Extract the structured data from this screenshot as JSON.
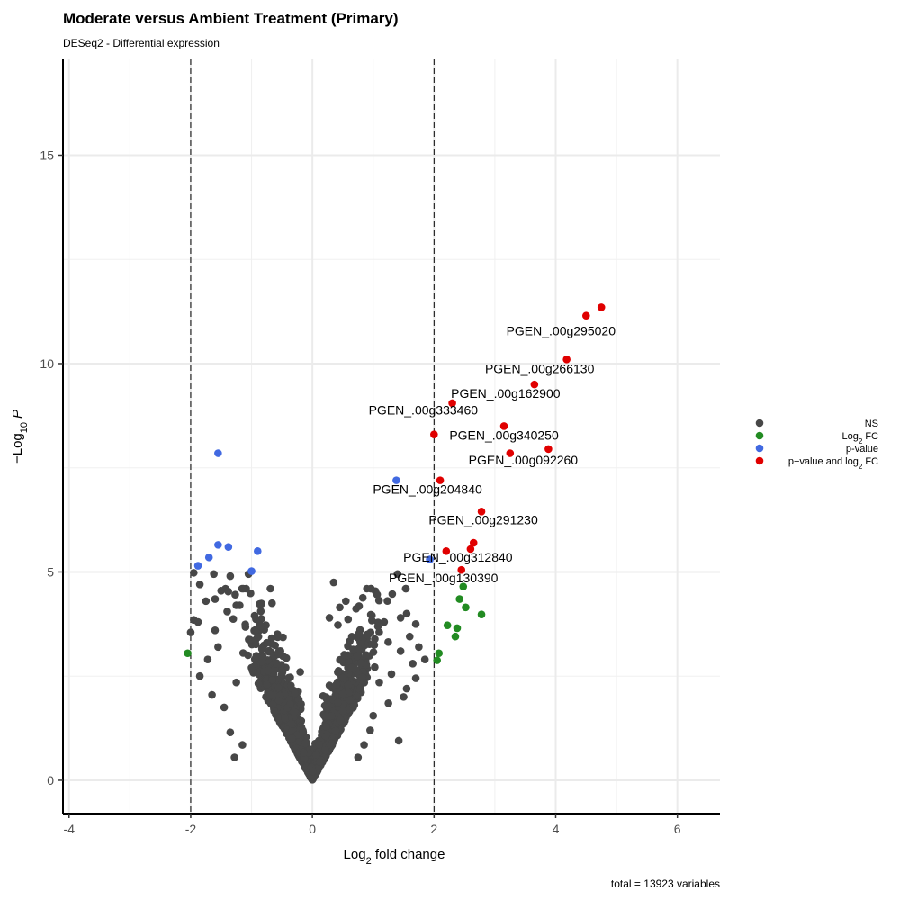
{
  "chart_data": {
    "type": "scatter",
    "title": "Moderate versus Ambient Treatment (Primary)",
    "subtitle": "DESeq2 - Differential expression",
    "xlabel_main": "Log",
    "xlabel_sub": "2",
    "xlabel_rest": " fold change",
    "ylabel_prefix": "−Log",
    "ylabel_sub": "10",
    "ylabel_var": "P",
    "xlim": [
      -4.1,
      6.7
    ],
    "ylim": [
      -0.8,
      17.3
    ],
    "x_ticks": [
      -4,
      -2,
      0,
      2,
      4,
      6
    ],
    "y_ticks": [
      0,
      5,
      10,
      15
    ],
    "cutoffs": {
      "log2fc": [
        -2,
        2
      ],
      "neg_log10_p": 5
    },
    "caption": "total = 13923 variables",
    "legend": {
      "position": "right",
      "entries": [
        {
          "key": "NS",
          "label": "NS",
          "color": "#474747"
        },
        {
          "key": "FC",
          "label": "Log",
          "label_sub": "2",
          "label_rest": " FC",
          "color": "#228B22"
        },
        {
          "key": "P",
          "label": "p-value",
          "color": "#4169E1"
        },
        {
          "key": "PFC",
          "label": "p−value and log",
          "label_sub": "2",
          "label_rest": " FC",
          "color": "#E00000"
        }
      ]
    },
    "series": [
      {
        "key": "PFC",
        "points": [
          [
            4.75,
            11.35
          ],
          [
            4.5,
            11.15
          ],
          [
            4.18,
            10.1
          ],
          [
            3.65,
            9.5
          ],
          [
            2.3,
            9.05
          ],
          [
            3.15,
            8.5
          ],
          [
            2.0,
            8.3
          ],
          [
            3.88,
            7.95
          ],
          [
            3.25,
            7.85
          ],
          [
            2.1,
            7.2
          ],
          [
            2.78,
            6.45
          ],
          [
            2.65,
            5.7
          ],
          [
            2.6,
            5.55
          ],
          [
            2.2,
            5.5
          ],
          [
            2.45,
            5.05
          ]
        ]
      },
      {
        "key": "P",
        "points": [
          [
            -1.55,
            7.85
          ],
          [
            1.38,
            7.2
          ],
          [
            -1.55,
            5.65
          ],
          [
            -1.38,
            5.6
          ],
          [
            -0.9,
            5.5
          ],
          [
            -1.7,
            5.35
          ],
          [
            1.93,
            5.3
          ],
          [
            -1.88,
            5.15
          ],
          [
            -1.0,
            5.02
          ]
        ]
      },
      {
        "key": "FC",
        "points": [
          [
            2.48,
            4.65
          ],
          [
            2.42,
            4.35
          ],
          [
            2.52,
            4.15
          ],
          [
            2.78,
            3.98
          ],
          [
            2.22,
            3.72
          ],
          [
            2.38,
            3.65
          ],
          [
            2.35,
            3.45
          ],
          [
            2.08,
            3.05
          ],
          [
            2.05,
            2.88
          ],
          [
            -2.05,
            3.05
          ]
        ]
      },
      {
        "key": "NS",
        "points": [
          [
            -1.95,
            4.98
          ],
          [
            -1.85,
            4.7
          ],
          [
            -1.62,
            4.95
          ],
          [
            -1.5,
            4.55
          ],
          [
            -1.35,
            4.9
          ],
          [
            -1.05,
            4.95
          ],
          [
            -1.25,
            4.2
          ],
          [
            -1.6,
            4.35
          ],
          [
            -1.4,
            4.05
          ],
          [
            -1.75,
            4.3
          ],
          [
            -1.95,
            3.85
          ],
          [
            -2.0,
            3.55
          ],
          [
            -1.88,
            3.8
          ],
          [
            -1.6,
            3.6
          ],
          [
            -1.55,
            3.2
          ],
          [
            -1.72,
            2.9
          ],
          [
            -1.85,
            2.5
          ],
          [
            -1.65,
            2.05
          ],
          [
            -1.45,
            1.75
          ],
          [
            -1.35,
            1.15
          ],
          [
            -1.15,
            0.85
          ],
          [
            -1.28,
            0.55
          ],
          [
            -0.95,
            3.95
          ],
          [
            -0.85,
            3.7
          ],
          [
            -0.75,
            3.3
          ],
          [
            -1.0,
            2.7
          ],
          [
            -1.25,
            2.35
          ],
          [
            -0.55,
            3.1
          ],
          [
            -0.2,
            2.6
          ],
          [
            1.4,
            4.95
          ],
          [
            0.35,
            4.75
          ],
          [
            0.55,
            4.3
          ],
          [
            0.45,
            4.15
          ],
          [
            0.28,
            3.9
          ],
          [
            0.9,
            3.5
          ],
          [
            1.18,
            3.8
          ],
          [
            1.45,
            3.9
          ],
          [
            1.55,
            4.0
          ],
          [
            1.7,
            3.75
          ],
          [
            1.6,
            3.45
          ],
          [
            1.75,
            3.2
          ],
          [
            1.45,
            3.1
          ],
          [
            1.65,
            2.8
          ],
          [
            1.85,
            2.9
          ],
          [
            1.7,
            2.45
          ],
          [
            1.3,
            2.55
          ],
          [
            1.55,
            2.2
          ],
          [
            1.1,
            2.35
          ],
          [
            1.25,
            1.85
          ],
          [
            1.0,
            1.55
          ],
          [
            0.95,
            1.2
          ],
          [
            0.85,
            0.85
          ],
          [
            0.75,
            0.55
          ],
          [
            1.42,
            0.95
          ],
          [
            1.5,
            2.0
          ]
        ]
      }
    ],
    "ns_cloud": {
      "count": 2600,
      "x_spread": 0.42,
      "y_max": 4.6
    },
    "labels": [
      {
        "text": "PGEN_.00g295020",
        "x": 4.5,
        "y": 11.15
      },
      {
        "text": "PGEN_.00g266130",
        "x": 4.18,
        "y": 10.1
      },
      {
        "text": "PGEN_.00g162900",
        "x": 3.65,
        "y": 9.5
      },
      {
        "text": "PGEN_.00g333460",
        "x": 2.0,
        "y": 8.3
      },
      {
        "text": "PGEN_.00g340250",
        "x": 3.15,
        "y": 8.5
      },
      {
        "text": "PGEN_.00g092260",
        "x": 3.88,
        "y": 7.95
      },
      {
        "text": "PGEN_.00g204840",
        "x": 2.1,
        "y": 7.2
      },
      {
        "text": "PGEN_.00g291230",
        "x": 2.78,
        "y": 6.45
      },
      {
        "text": "PGEN_.00g312840",
        "x": 2.6,
        "y": 5.55
      },
      {
        "text": "PGEN_.00g130390",
        "x": 2.45,
        "y": 5.05
      }
    ]
  }
}
